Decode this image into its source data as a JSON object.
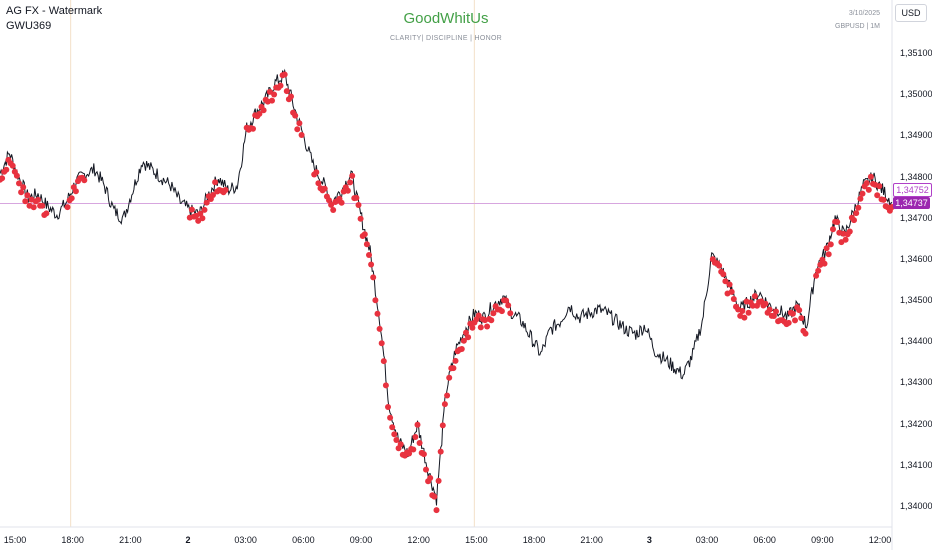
{
  "header": {
    "indicator_title": "AG FX - Watermark",
    "sub_title": "GWU369"
  },
  "watermark": {
    "brand": "GoodWhitUs",
    "tagline": "CLARITY|  DISCIPLINE   |   HONOR",
    "date": "3/10/2025",
    "symbol_tf": "GBPUSD  |  1M"
  },
  "price_axis": {
    "currency_button": "USD",
    "ticks": [
      "1,35100",
      "1,35000",
      "1,34900",
      "1,34800",
      "1,34700",
      "1,34600",
      "1,34500",
      "1,34400",
      "1,34300",
      "1,34200",
      "1,34100",
      "1,34000"
    ],
    "tag_upper": "1,34752",
    "tag_current": "1,34737"
  },
  "time_axis": {
    "ticks": [
      {
        "label": "15:00",
        "bold": false
      },
      {
        "label": "18:00",
        "bold": false
      },
      {
        "label": "21:00",
        "bold": false
      },
      {
        "label": "2",
        "bold": true
      },
      {
        "label": "03:00",
        "bold": false
      },
      {
        "label": "06:00",
        "bold": false
      },
      {
        "label": "09:00",
        "bold": false
      },
      {
        "label": "12:00",
        "bold": false
      },
      {
        "label": "15:00",
        "bold": false
      },
      {
        "label": "18:00",
        "bold": false
      },
      {
        "label": "21:00",
        "bold": false
      },
      {
        "label": "3",
        "bold": true
      },
      {
        "label": "03:00",
        "bold": false
      },
      {
        "label": "06:00",
        "bold": false
      },
      {
        "label": "09:00",
        "bold": false
      },
      {
        "label": "12:00",
        "bold": false
      }
    ]
  },
  "colors": {
    "price_line": "#131722",
    "signal_dots": "#e8323f",
    "brand_green": "#43a047",
    "tag_purple": "#9c27b0"
  },
  "chart_data": {
    "type": "line",
    "symbol": "GBPUSD",
    "timeframe": "1M",
    "ylim": [
      1.3398,
      1.3514
    ],
    "grid": false,
    "x": [
      "15:00",
      "18:00",
      "21:00",
      "2",
      "03:00",
      "06:00",
      "09:00",
      "12:00",
      "15:00",
      "18:00",
      "21:00",
      "3",
      "03:00",
      "06:00",
      "09:00",
      "12:00"
    ],
    "price_path": [
      1.3481,
      1.3486,
      1.348,
      1.3475,
      1.3476,
      1.3473,
      1.3471,
      1.3474,
      1.3479,
      1.3481,
      1.3482,
      1.3478,
      1.3472,
      1.347,
      1.3477,
      1.3484,
      1.3482,
      1.348,
      1.3478,
      1.3474,
      1.3472,
      1.3471,
      1.3476,
      1.348,
      1.3477,
      1.3478,
      1.3492,
      1.3496,
      1.3499,
      1.3503,
      1.3505,
      1.3497,
      1.349,
      1.3483,
      1.3479,
      1.3474,
      1.3477,
      1.3481,
      1.3471,
      1.3462,
      1.3446,
      1.3425,
      1.3416,
      1.3413,
      1.342,
      1.341,
      1.3402,
      1.3428,
      1.3438,
      1.3443,
      1.3447,
      1.3446,
      1.3449,
      1.3451,
      1.3447,
      1.3445,
      1.3441,
      1.3437,
      1.3443,
      1.3445,
      1.3449,
      1.3446,
      1.3447,
      1.3448,
      1.3447,
      1.3445,
      1.3443,
      1.3442,
      1.3444,
      1.3438,
      1.3436,
      1.3434,
      1.3432,
      1.3437,
      1.3445,
      1.3461,
      1.3458,
      1.3453,
      1.3448,
      1.345,
      1.3452,
      1.3449,
      1.3448,
      1.3446,
      1.3449,
      1.3444,
      1.3458,
      1.3462,
      1.347,
      1.3466,
      1.3472,
      1.3478,
      1.348,
      1.3477,
      1.3474
    ],
    "signals": {
      "name": "",
      "marker": "dot",
      "ranges": [
        [
          0,
          4
        ],
        [
          7,
          8
        ],
        [
          20,
          23
        ],
        [
          26,
          31
        ],
        [
          33,
          38
        ],
        [
          39,
          47
        ],
        [
          48,
          53
        ],
        [
          75,
          79
        ],
        [
          80,
          84
        ],
        [
          86,
          94
        ]
      ]
    },
    "current_price": 1.34737,
    "marked_price": 1.34752
  }
}
